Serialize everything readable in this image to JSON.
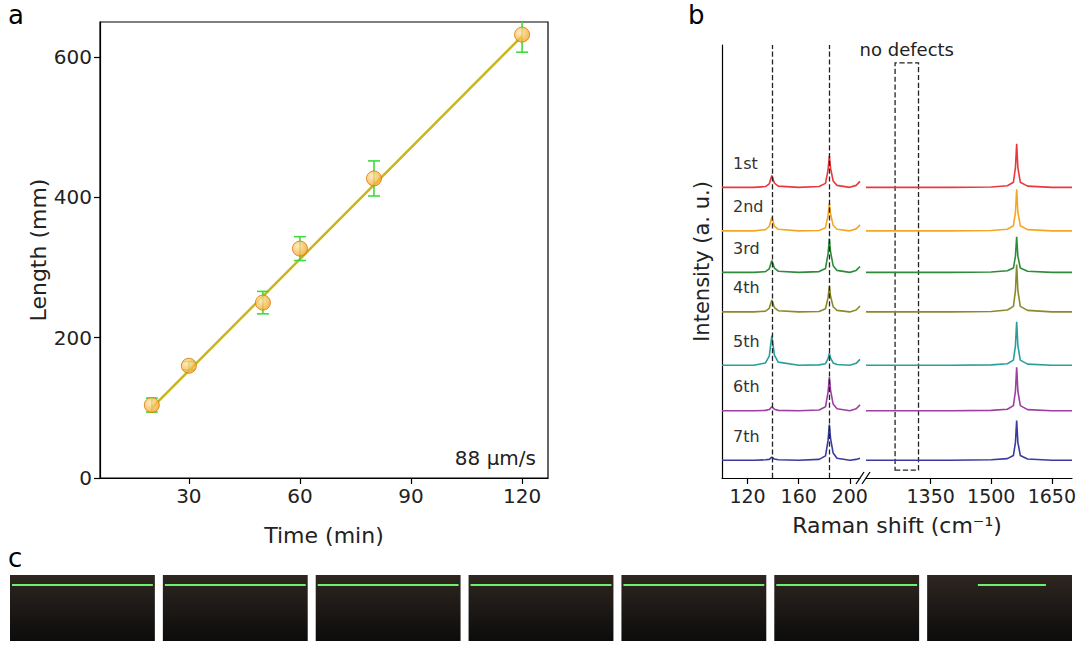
{
  "chart_data": [
    {
      "panel": "a",
      "type": "scatter",
      "x_label": "Time (min)",
      "y_label": "Length (mm)",
      "x": [
        20,
        30,
        50,
        60,
        80,
        120
      ],
      "values": [
        104,
        160,
        250,
        327,
        427,
        632
      ],
      "error": [
        10,
        6,
        16,
        17,
        25,
        25
      ],
      "color": "#f5a01a",
      "marker": "circle",
      "fit": {
        "type": "line",
        "x": [
          20,
          120
        ],
        "values": [
          100,
          630
        ],
        "color": "#c9b51c"
      },
      "annotations": [
        "88 μm/s"
      ],
      "xlim": [
        6,
        127
      ],
      "xticks": [
        30,
        60,
        90,
        120
      ],
      "ylim": [
        0,
        650
      ],
      "yticks": [
        0,
        200,
        400,
        600
      ],
      "grid": false
    },
    {
      "panel": "b",
      "type": "line",
      "x_label": "Raman shift (cm⁻¹)",
      "y_label": "Intensity (a. u.)",
      "tick_labels": "x",
      "grid": false,
      "segments": [
        {
          "xlim": [
            100,
            208
          ],
          "xticks": [
            120,
            160,
            200
          ]
        },
        {
          "xlim": [
            1190,
            1700
          ],
          "xticks": [
            1350,
            1500,
            1650
          ]
        }
      ],
      "ylim": [
        -0.45,
        10.5
      ],
      "x": [
        100,
        125,
        134,
        137,
        139,
        141,
        144,
        160,
        176,
        181,
        183,
        184,
        185,
        187,
        190,
        200,
        205,
        208,
        1190,
        1300,
        1400,
        1500,
        1540,
        1555,
        1560,
        1563,
        1566,
        1572,
        1590,
        1650,
        1700
      ],
      "series": [
        {
          "name": "1st",
          "color": "#e8383d",
          "values": [
            6.9,
            6.9,
            6.92,
            6.99,
            7.2,
            7.01,
            6.93,
            6.9,
            6.92,
            7.0,
            7.34,
            7.7,
            7.38,
            7.06,
            6.95,
            6.9,
            6.95,
            7.05,
            6.9,
            6.9,
            6.9,
            6.91,
            6.94,
            7.03,
            7.4,
            8.0,
            7.4,
            7.03,
            6.93,
            6.9,
            6.9
          ]
        },
        {
          "name": "2nd",
          "color": "#f5a623",
          "values": [
            5.8,
            5.8,
            5.83,
            5.91,
            6.15,
            5.92,
            5.84,
            5.8,
            5.81,
            5.88,
            6.19,
            6.5,
            6.22,
            5.94,
            5.84,
            5.8,
            5.85,
            5.95,
            5.8,
            5.8,
            5.8,
            5.81,
            5.84,
            5.93,
            6.27,
            6.85,
            6.27,
            5.93,
            5.83,
            5.8,
            5.8
          ]
        },
        {
          "name": "3rd",
          "color": "#2e8b3a",
          "values": [
            4.75,
            4.75,
            4.77,
            4.84,
            5.05,
            4.86,
            4.78,
            4.75,
            4.77,
            4.85,
            5.22,
            5.6,
            5.26,
            4.92,
            4.8,
            4.75,
            4.8,
            4.9,
            4.75,
            4.75,
            4.75,
            4.76,
            4.79,
            4.86,
            5.16,
            5.65,
            5.16,
            4.86,
            4.78,
            4.75,
            4.75
          ]
        },
        {
          "name": "4th",
          "color": "#8a8a2a",
          "values": [
            3.75,
            3.75,
            3.77,
            3.84,
            4.05,
            3.86,
            3.78,
            3.75,
            3.76,
            3.83,
            4.11,
            4.4,
            4.14,
            3.88,
            3.79,
            3.75,
            3.8,
            3.9,
            3.75,
            3.75,
            3.75,
            3.76,
            3.8,
            3.89,
            4.29,
            4.95,
            4.29,
            3.89,
            3.79,
            3.75,
            3.75
          ]
        },
        {
          "name": "5th",
          "color": "#2a9d9d",
          "values": [
            2.4,
            2.4,
            2.46,
            2.63,
            3.15,
            2.66,
            2.48,
            2.4,
            2.41,
            2.44,
            2.57,
            2.7,
            2.58,
            2.46,
            2.42,
            2.4,
            2.45,
            2.55,
            2.4,
            2.4,
            2.4,
            2.41,
            2.44,
            2.53,
            2.9,
            3.5,
            2.9,
            2.53,
            2.43,
            2.4,
            2.4
          ]
        },
        {
          "name": "6th",
          "color": "#9b3fa0",
          "values": [
            1.25,
            1.25,
            1.26,
            1.28,
            1.35,
            1.29,
            1.26,
            1.25,
            1.27,
            1.35,
            1.72,
            2.1,
            1.76,
            1.42,
            1.3,
            1.25,
            1.3,
            1.4,
            1.25,
            1.25,
            1.25,
            1.26,
            1.29,
            1.38,
            1.75,
            2.35,
            1.75,
            1.38,
            1.28,
            1.25,
            1.25
          ]
        },
        {
          "name": "7th",
          "color": "#3a3aa0",
          "values": [
            0,
            0,
            0.01,
            0.02,
            0.08,
            0.03,
            0.01,
            0,
            0.02,
            0.11,
            0.5,
            0.9,
            0.54,
            0.18,
            0.05,
            0,
            0.02,
            0.05,
            0,
            0,
            0,
            0.01,
            0.04,
            0.12,
            0.45,
            1.0,
            0.45,
            0.12,
            0.03,
            0,
            0
          ]
        }
      ],
      "dashed_lines": [
        139,
        184
      ],
      "box": {
        "label": "no defects",
        "x": [
          1262,
          1320
        ],
        "y": [
          -0.25,
          10.05
        ]
      }
    },
    {
      "panel": "c",
      "type": "photos",
      "count": 7
    }
  ]
}
